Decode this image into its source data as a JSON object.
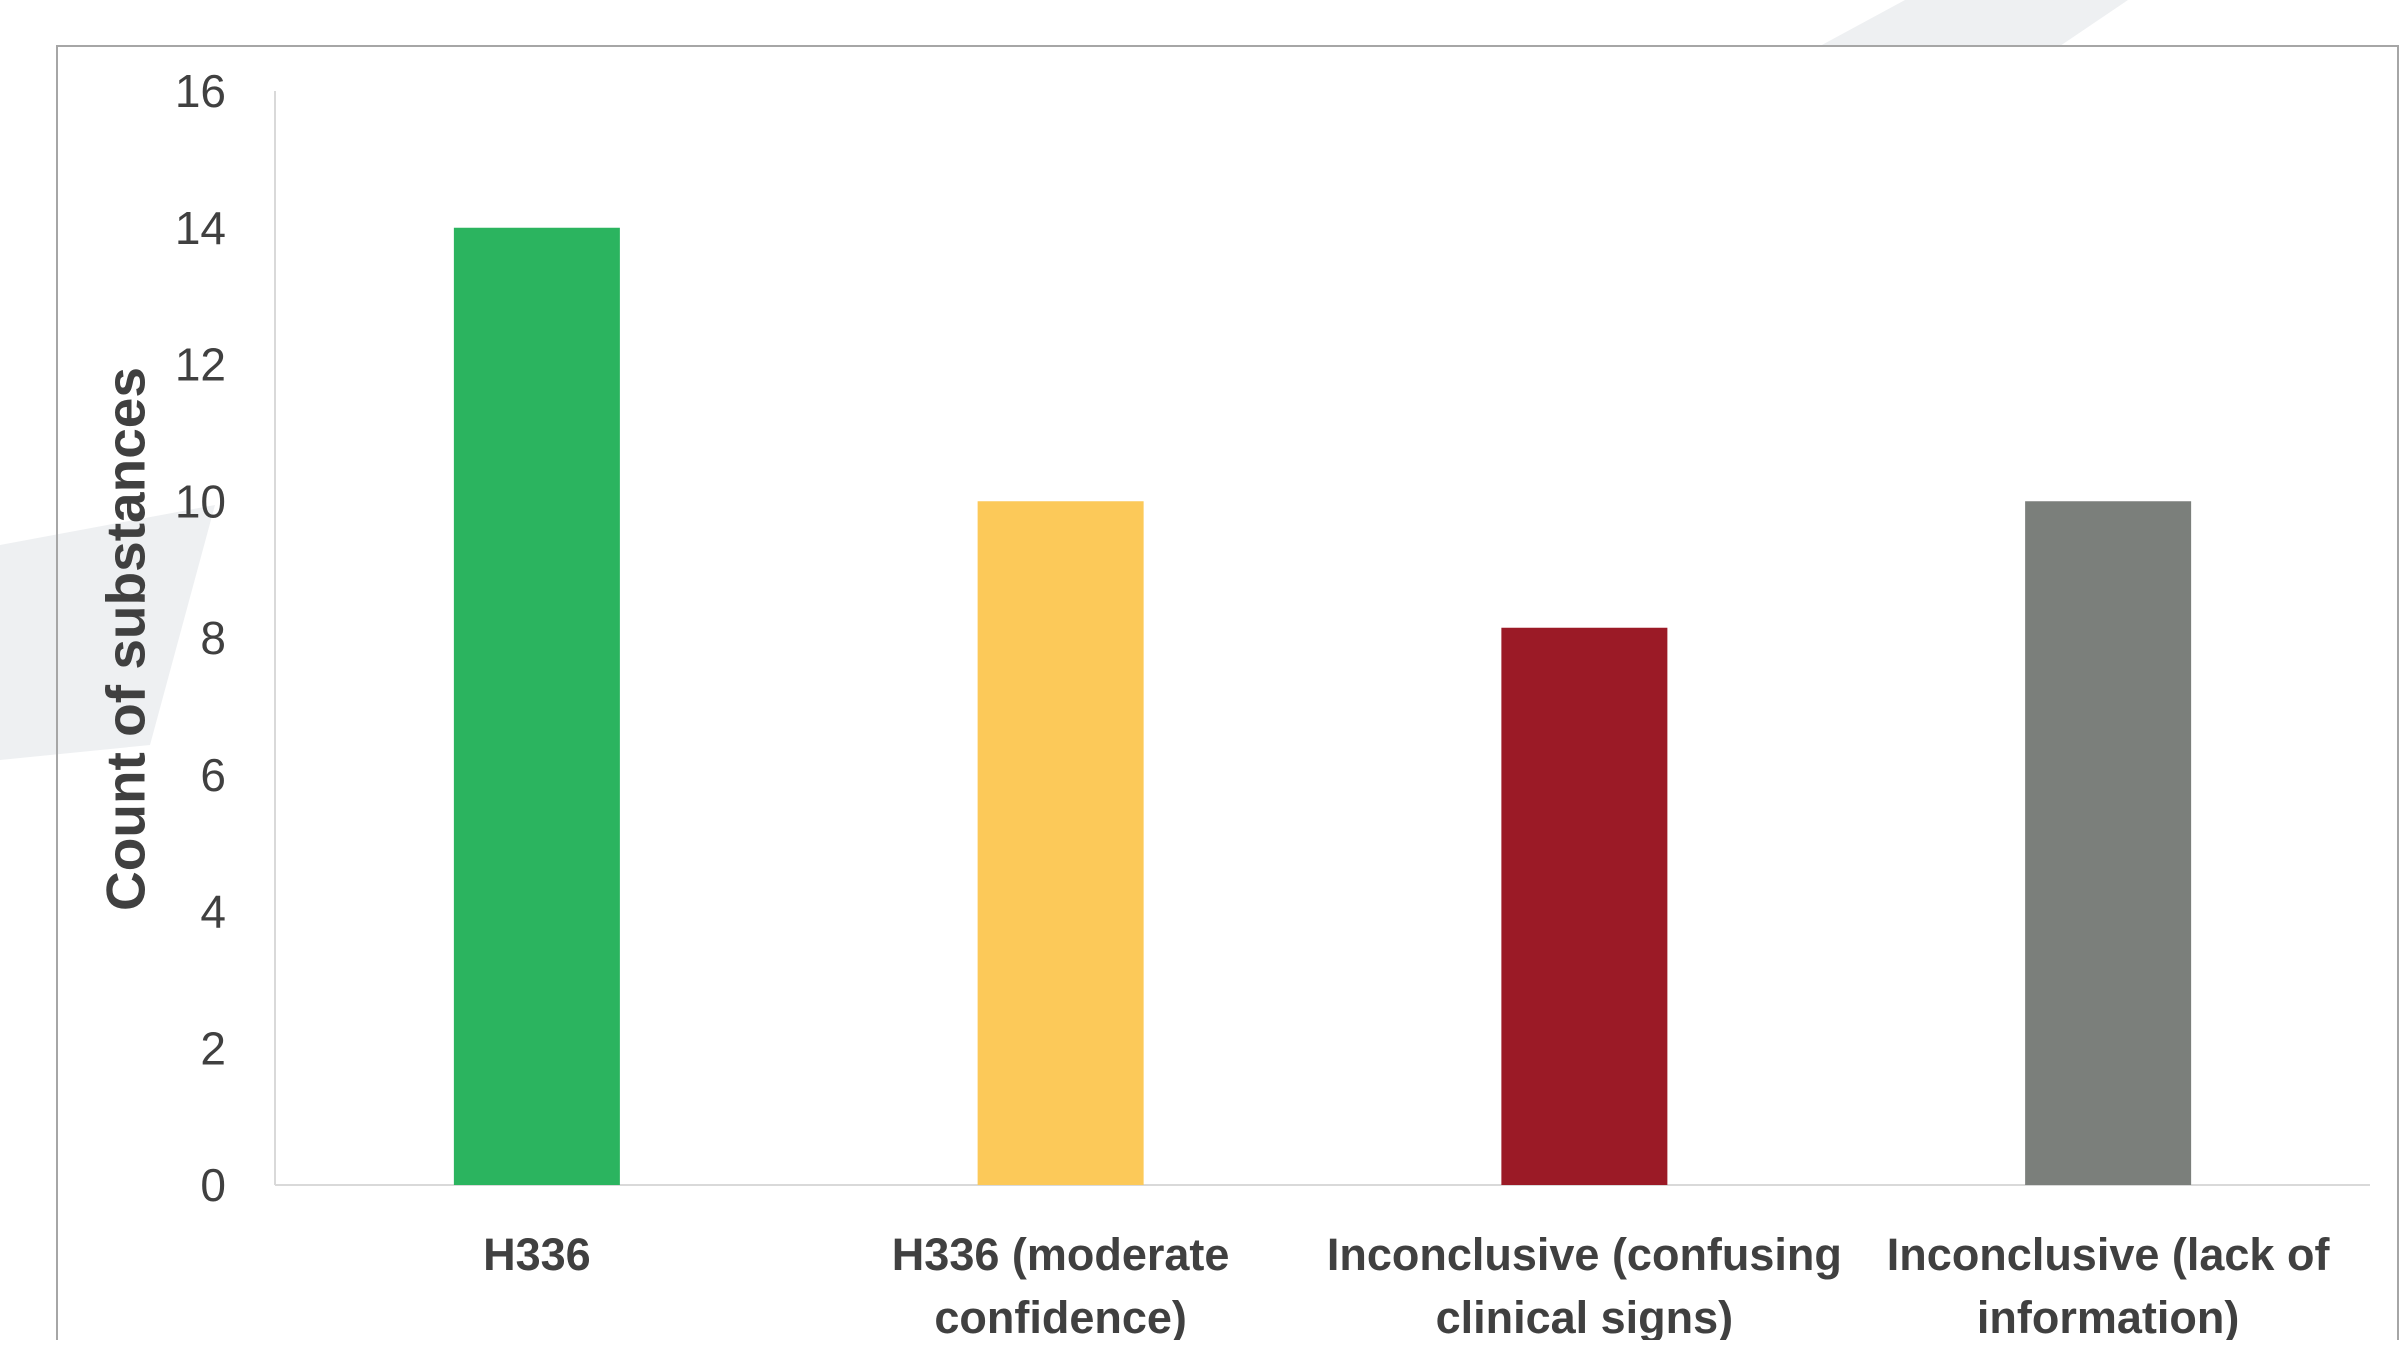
{
  "chart_data": {
    "type": "bar",
    "title": "",
    "xlabel": "",
    "ylabel": "Count of substances",
    "ylim": [
      0,
      16
    ],
    "yticks": [
      0,
      2,
      4,
      6,
      8,
      10,
      12,
      14,
      16
    ],
    "grid": false,
    "legend": "none",
    "categories": [
      [
        "H336"
      ],
      [
        "H336 (moderate",
        "confidence)"
      ],
      [
        "Inconclusive (confusing",
        "clinical signs)"
      ],
      [
        "Inconclusive (lack of",
        "information)"
      ]
    ],
    "values": [
      14,
      10,
      8.15,
      10
    ],
    "colors": [
      "#2bb45f",
      "#fcc959",
      "#9b1a26",
      "#7b7f7b"
    ],
    "axis_color": "#d9d9d9",
    "frame_color": "#a6a6a6",
    "background_band_color": "#eef0f2"
  }
}
